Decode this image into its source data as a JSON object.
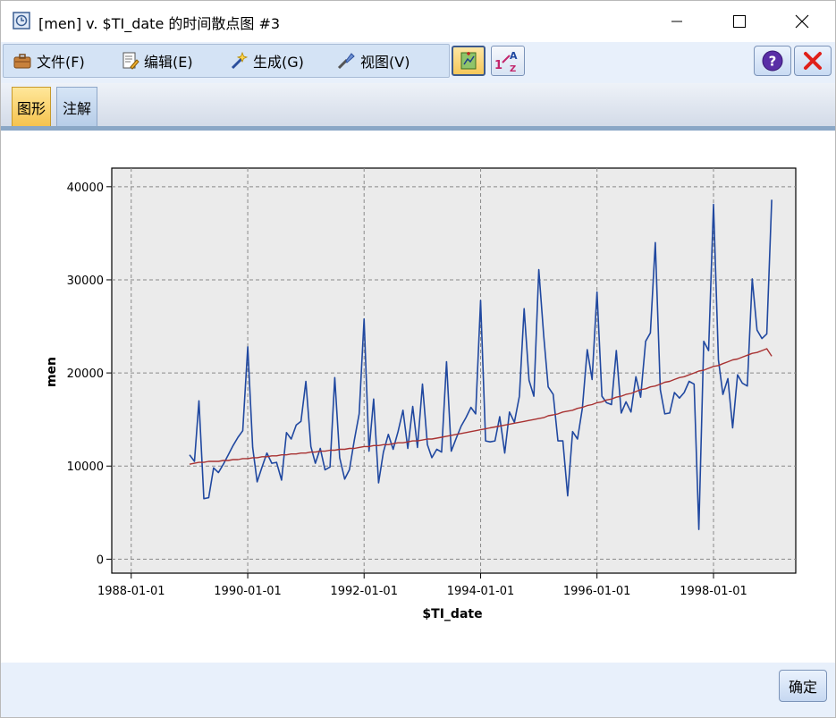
{
  "window": {
    "title": "[men] v. $TI_date 的时间散点图 #3",
    "minimize_icon": "minimize-icon",
    "maximize_icon": "maximize-icon",
    "close_icon": "close-icon"
  },
  "menu": {
    "items": [
      {
        "label": "文件(F)",
        "icon": "briefcase-icon"
      },
      {
        "label": "编辑(E)",
        "icon": "edit-document-icon"
      },
      {
        "label": "生成(G)",
        "icon": "generate-wand-icon"
      },
      {
        "label": "视图(V)",
        "icon": "view-brush-icon"
      }
    ]
  },
  "toolbar": {
    "buttons": [
      {
        "icon": "add-graph-icon"
      },
      {
        "icon": "sort-icon"
      }
    ],
    "help_icon": "help-icon",
    "close_icon": "close-x-icon"
  },
  "tabs": [
    {
      "label": "图形",
      "active": true
    },
    {
      "label": "注解",
      "active": false
    }
  ],
  "footer": {
    "ok_label": "确定"
  },
  "colors": {
    "series_line": "#2048a0",
    "trend_line": "#a83232",
    "plot_bg": "#ebebeb"
  },
  "chart_data": {
    "type": "line",
    "xlabel": "$TI_date",
    "ylabel": "men",
    "xlim": [
      "1987-09-01",
      "1999-06-01"
    ],
    "ylim": [
      -1500,
      42000
    ],
    "x_ticks": [
      "1988-01-01",
      "1990-01-01",
      "1992-01-01",
      "1994-01-01",
      "1996-01-01",
      "1998-01-01"
    ],
    "y_ticks": [
      0,
      10000,
      20000,
      30000,
      40000
    ],
    "grid": true,
    "series_start": "1989-01-01",
    "series_frequency": "monthly",
    "series": [
      {
        "values": [
          11200,
          10500,
          17000,
          6500,
          6600,
          9800,
          9300,
          10200,
          11200,
          12200,
          13100,
          13800,
          22800,
          12000,
          8300,
          9900,
          11400,
          10300,
          10400,
          8500,
          13600,
          12900,
          14400,
          14800,
          19100,
          12100,
          10300,
          11900,
          9600,
          9900,
          19500,
          10900,
          8600,
          9600,
          12800,
          15600,
          25800,
          11600,
          17200,
          8200,
          11500,
          13400,
          11800,
          13700,
          16000,
          11900,
          16400,
          12000,
          18800,
          12300,
          10900,
          11800,
          11500,
          21200,
          11600,
          13000,
          14300,
          15200,
          16300,
          15600,
          27800,
          12700,
          12600,
          12700,
          15300,
          11400,
          15800,
          14700,
          17500,
          26900,
          19200,
          17500,
          31100,
          24000,
          18500,
          17700,
          12700,
          12700,
          6800,
          13700,
          12900,
          16200,
          22500,
          19300,
          28700,
          17500,
          16800,
          16600,
          22400,
          15700,
          16900,
          15800,
          19600,
          17400,
          23400,
          24300,
          34000,
          18200,
          15600,
          15700,
          17900,
          17300,
          17900,
          19100,
          18800,
          3200,
          23400,
          22400,
          38100,
          21400,
          17700,
          19400,
          14100,
          19800,
          18900,
          18600,
          30100,
          24600,
          23700,
          24200,
          38600
        ]
      },
      {
        "values": [
          10200,
          10300,
          10400,
          10400,
          10500,
          10500,
          10500,
          10600,
          10600,
          10700,
          10700,
          10800,
          10800,
          10900,
          10900,
          11000,
          11000,
          11100,
          11100,
          11200,
          11200,
          11300,
          11300,
          11400,
          11400,
          11500,
          11500,
          11600,
          11600,
          11700,
          11700,
          11800,
          11800,
          11900,
          11900,
          12000,
          12100,
          12100,
          12200,
          12200,
          12300,
          12300,
          12400,
          12500,
          12500,
          12600,
          12700,
          12700,
          12800,
          12900,
          12900,
          13000,
          13100,
          13200,
          13300,
          13400,
          13500,
          13600,
          13700,
          13800,
          13900,
          14000,
          14100,
          14200,
          14300,
          14400,
          14500,
          14600,
          14700,
          14800,
          14900,
          15000,
          15100,
          15200,
          15400,
          15500,
          15600,
          15800,
          15900,
          16000,
          16200,
          16300,
          16500,
          16600,
          16800,
          16900,
          17100,
          17200,
          17400,
          17500,
          17700,
          17800,
          18000,
          18200,
          18300,
          18500,
          18600,
          18800,
          19000,
          19100,
          19300,
          19500,
          19600,
          19800,
          20000,
          20200,
          20300,
          20500,
          20700,
          20800,
          21000,
          21200,
          21400,
          21500,
          21700,
          21900,
          22100,
          22200,
          22400,
          22600,
          21800
        ]
      }
    ]
  }
}
